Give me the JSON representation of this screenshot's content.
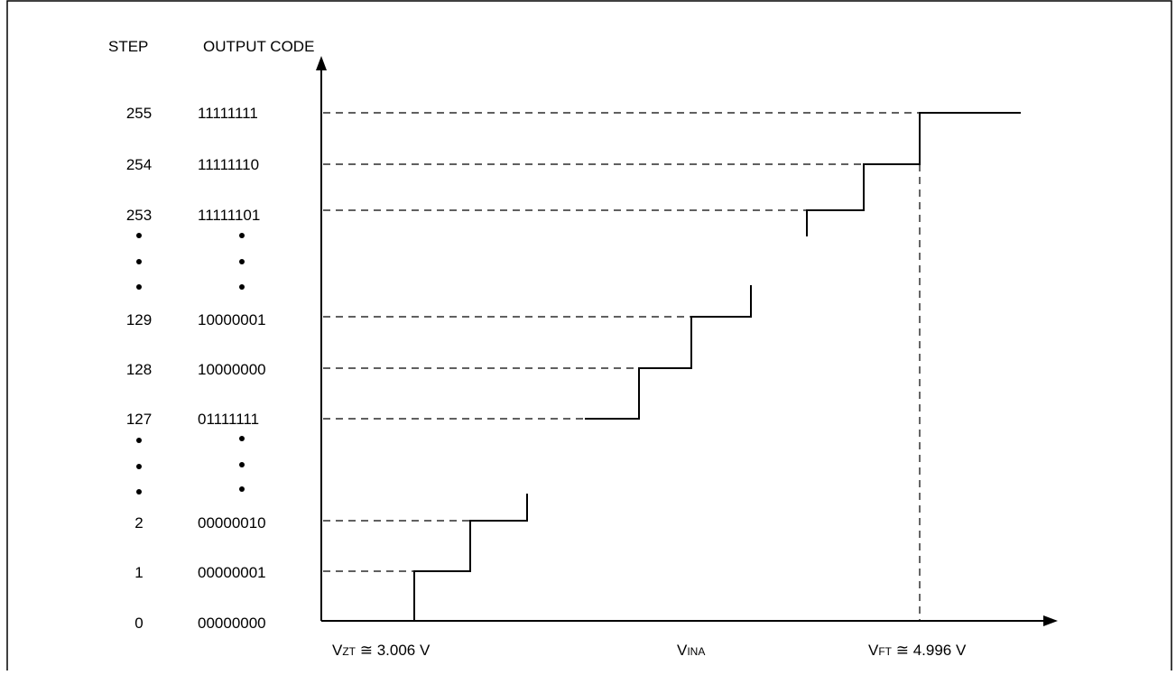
{
  "headers": {
    "step": "STEP",
    "output_code": "OUTPUT CODE"
  },
  "rows": [
    {
      "step": "255",
      "code": "11111111"
    },
    {
      "step": "254",
      "code": "11111110"
    },
    {
      "step": "253",
      "code": "11111101"
    },
    {
      "step": "129",
      "code": "10000001"
    },
    {
      "step": "128",
      "code": "10000000"
    },
    {
      "step": "127",
      "code": "01111111"
    },
    {
      "step": "2",
      "code": "00000010"
    },
    {
      "step": "1",
      "code": "00000001"
    },
    {
      "step": "0",
      "code": "00000000"
    }
  ],
  "x_labels": {
    "vzt": {
      "main": "V",
      "sub": "ZT",
      "rest": " ≅ 3.006 V"
    },
    "vina": {
      "main": "V",
      "sub": "INA"
    },
    "vft": {
      "main": "V",
      "sub": "FT",
      "rest": " ≅ 4.996 V"
    }
  }
}
